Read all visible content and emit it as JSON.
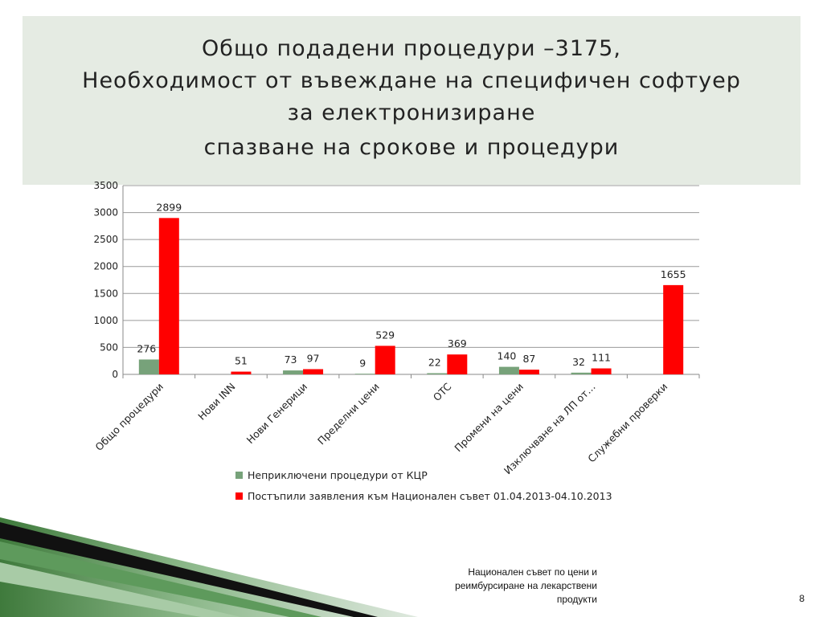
{
  "slide": {
    "title_lines": [
      "Общо подадени процедури –3175,",
      "Необходимост от  въвеждане на специфичен софтуер",
      "за електронизиране",
      "спазване на срокове и процедури"
    ],
    "footer": [
      "Национален съвет по цени и",
      "реимбурсиране на лекарствени",
      "продукти"
    ],
    "page_number": "8"
  },
  "chart_data": {
    "type": "bar",
    "categories": [
      "Общо процедури",
      "Нови INN",
      "Нови Генерици",
      "Пределни цени",
      "OTC",
      "Промени на цени",
      "Изключване на ЛП от…",
      "Служебни проверки"
    ],
    "series": [
      {
        "name": "Неприключени процедури от КЦР",
        "color": "#77a27a",
        "values": [
          276,
          null,
          73,
          9,
          22,
          140,
          32,
          null
        ]
      },
      {
        "name": "Постъпили заявления  към Национален съвет 01.04.2013-04.10.2013",
        "color": "#ff0000",
        "values": [
          2899,
          51,
          97,
          529,
          369,
          87,
          111,
          1655
        ]
      }
    ],
    "ylim": [
      0,
      3500
    ],
    "yticks": [
      0,
      500,
      1000,
      1500,
      2000,
      2500,
      3000,
      3500
    ],
    "grid": true,
    "legend": "bottom",
    "data_labels": true
  }
}
